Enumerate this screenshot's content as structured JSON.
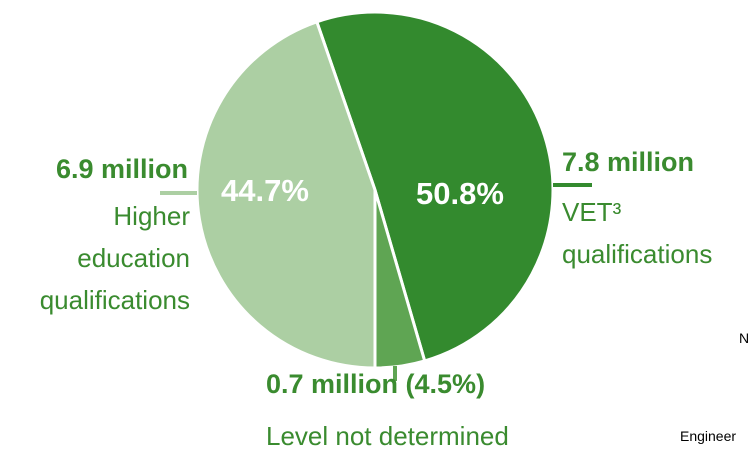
{
  "chart_data": {
    "type": "pie",
    "categories": [
      "VET³ qualifications",
      "Level not determined",
      "Higher education qualifications"
    ],
    "values": [
      50.8,
      4.5,
      44.7
    ],
    "value_labels": [
      "50.8%",
      null,
      "44.7%"
    ],
    "amount_labels": [
      "7.8 million",
      "0.7 million (4.5%)",
      "6.9 million"
    ],
    "colors": [
      "#338a2e",
      "#5fa553",
      "#accfa3"
    ],
    "background_text": [
      "N",
      "Engineer"
    ]
  }
}
